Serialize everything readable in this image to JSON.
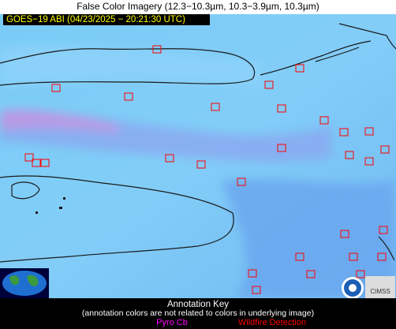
{
  "header": {
    "title": "False Color Imagery (12.3−10.3µm, 10.3−3.9µm, 10.3µm)"
  },
  "image": {
    "timestamp": "GOES−19 ABI (04/23/2025 − 20:21:30 UTC)"
  },
  "key": {
    "title": "Annotation Key",
    "note": "(annotation colors are not related to colors in underlying image)",
    "items": [
      {
        "label": "Pyro Cb",
        "color": "#ff00ff"
      },
      {
        "label": "Wildfire Detection",
        "color": "#ff0000"
      }
    ]
  }
}
